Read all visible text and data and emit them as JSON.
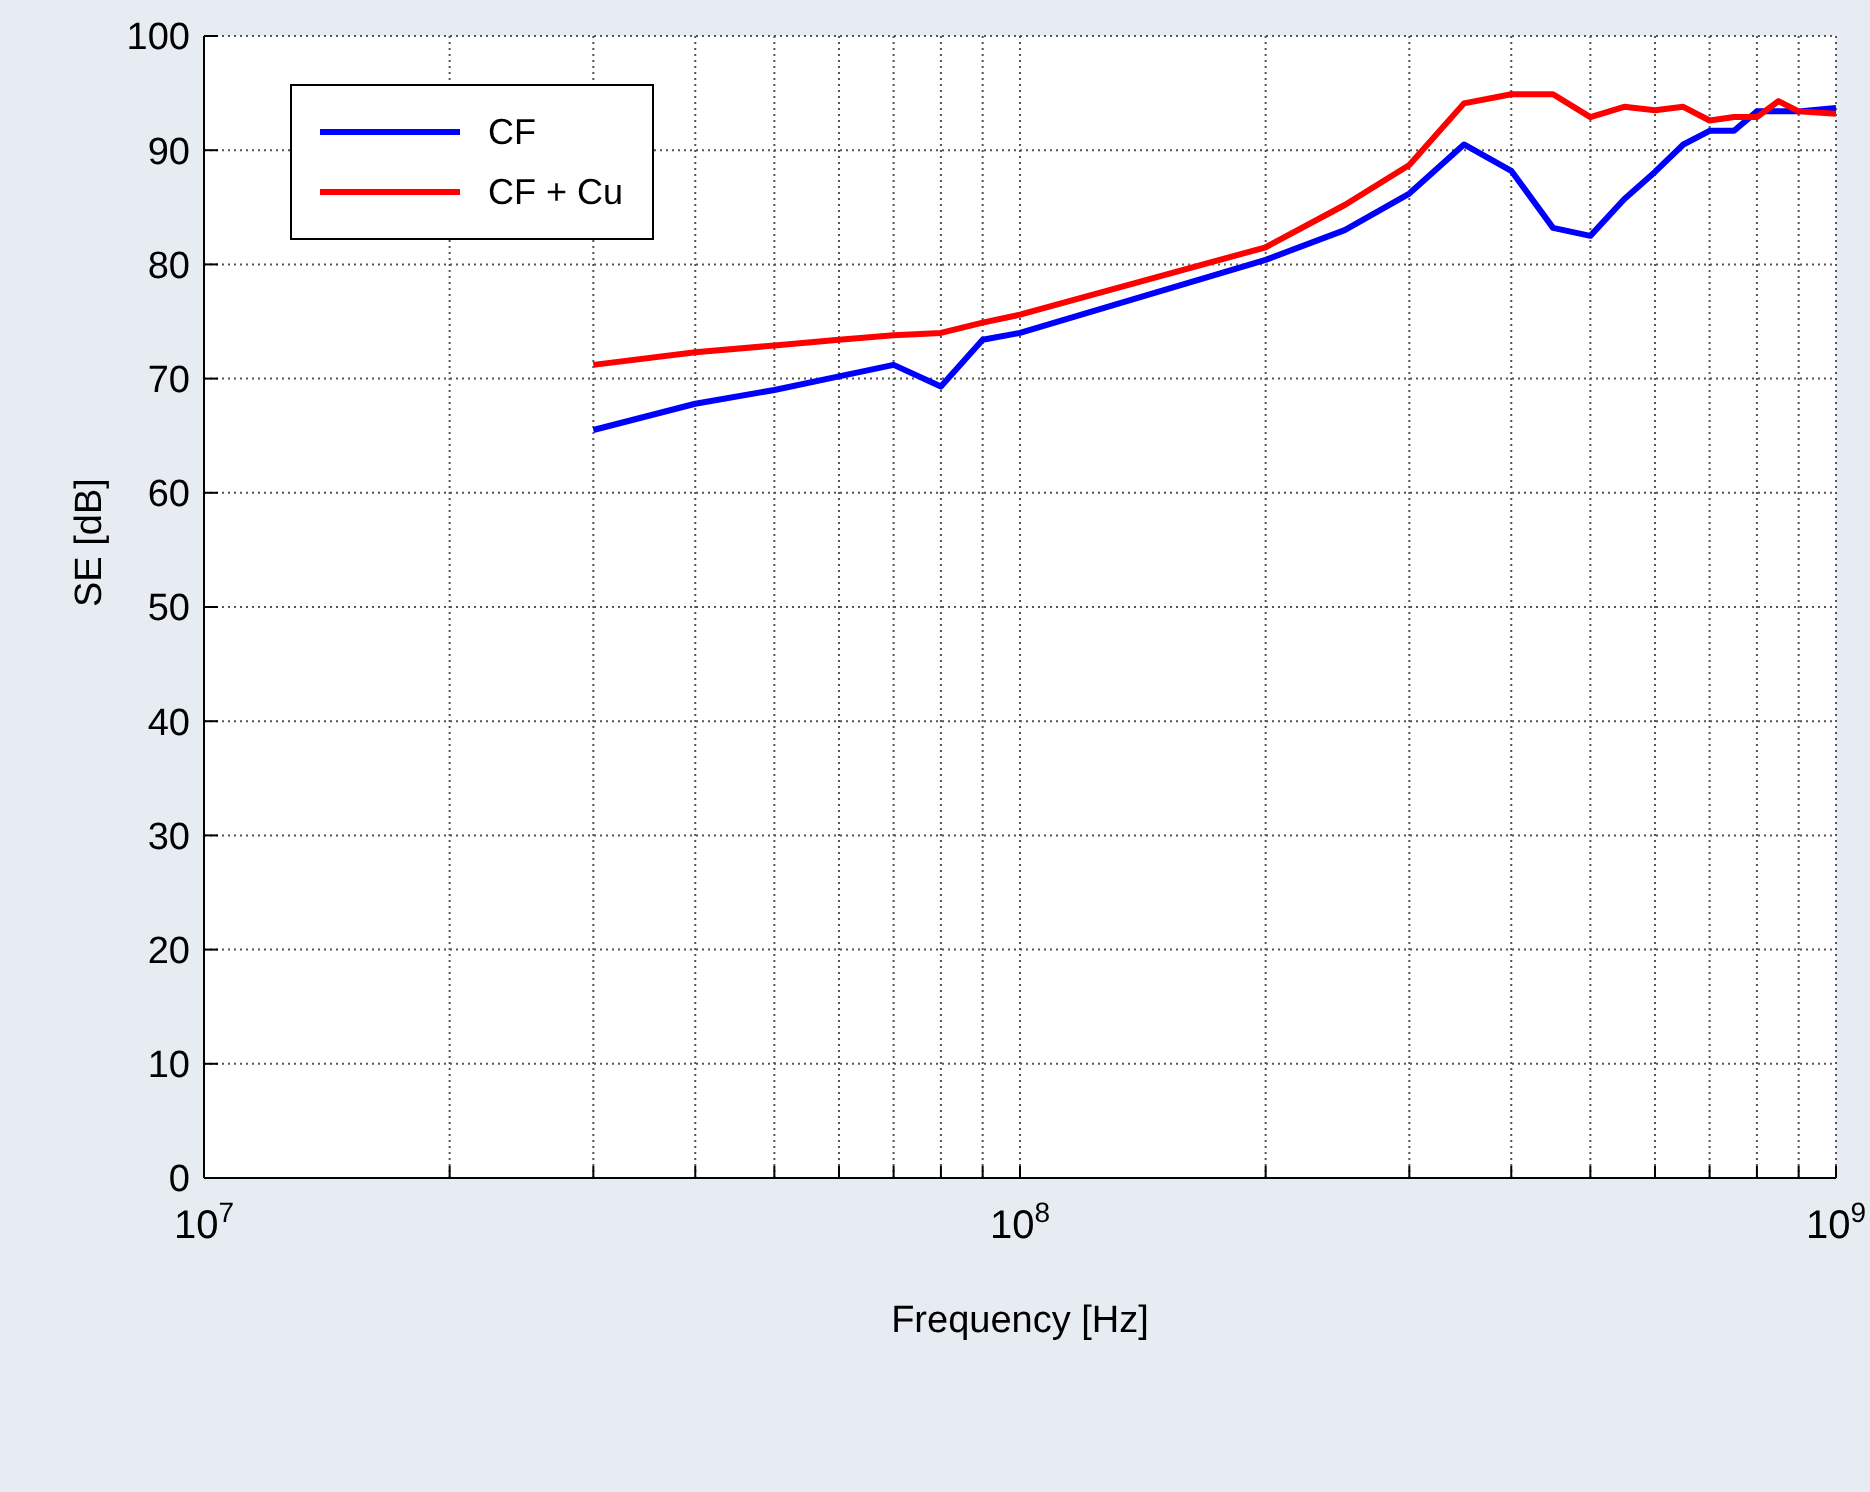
{
  "chart_data": {
    "type": "line",
    "xlabel": "Frequency [Hz]",
    "ylabel": "SE [dB]",
    "log": "x",
    "x": [
      30000000,
      40000000,
      50000000,
      60000000,
      70000000,
      80000000,
      90000000,
      100000000,
      200000000,
      250000000,
      300000000,
      350000000,
      400000000,
      450000000,
      500000000,
      550000000,
      600000000,
      650000000,
      700000000,
      750000000,
      800000000,
      850000000,
      900000000,
      1000000000
    ],
    "series": [
      {
        "name": "CF",
        "color": "#0000ff",
        "values": [
          65.5,
          67.8,
          69.0,
          70.2,
          71.2,
          69.3,
          73.4,
          74.0,
          80.4,
          83.0,
          86.2,
          90.5,
          88.2,
          83.2,
          82.5,
          85.7,
          88.1,
          90.5,
          91.7,
          91.7,
          93.4,
          93.4,
          93.4,
          93.7
        ]
      },
      {
        "name": "CF + Cu",
        "color": "#ff0000",
        "values": [
          71.2,
          72.3,
          72.9,
          73.4,
          73.8,
          74.0,
          74.9,
          75.6,
          81.5,
          85.2,
          88.7,
          94.1,
          94.9,
          94.9,
          92.9,
          93.8,
          93.5,
          93.8,
          92.6,
          92.9,
          92.9,
          94.3,
          93.4,
          93.2
        ]
      }
    ],
    "xlim": [
      10000000,
      1000000000
    ],
    "xticks": [
      {
        "value": 10000000,
        "label": "10$^{7}$"
      },
      {
        "value": 20000000,
        "label": null
      },
      {
        "value": 30000000,
        "label": null
      },
      {
        "value": 40000000,
        "label": null
      },
      {
        "value": 50000000,
        "label": null
      },
      {
        "value": 60000000,
        "label": null
      },
      {
        "value": 70000000,
        "label": null
      },
      {
        "value": 80000000,
        "label": null
      },
      {
        "value": 90000000,
        "label": null
      },
      {
        "value": 100000000,
        "label": "10$^{8}$"
      },
      {
        "value": 200000000,
        "label": null
      },
      {
        "value": 300000000,
        "label": null
      },
      {
        "value": 400000000,
        "label": null
      },
      {
        "value": 500000000,
        "label": null
      },
      {
        "value": 600000000,
        "label": null
      },
      {
        "value": 700000000,
        "label": null
      },
      {
        "value": 800000000,
        "label": null
      },
      {
        "value": 900000000,
        "label": null
      },
      {
        "value": 1000000000,
        "label": "10$^{9}$"
      }
    ],
    "ylim": [
      0,
      100
    ],
    "yticks": [
      0,
      10,
      20,
      30,
      40,
      50,
      60,
      70,
      80,
      90,
      100
    ],
    "grid": true,
    "legend": "top left",
    "marker": "none",
    "line_style": "solid"
  }
}
